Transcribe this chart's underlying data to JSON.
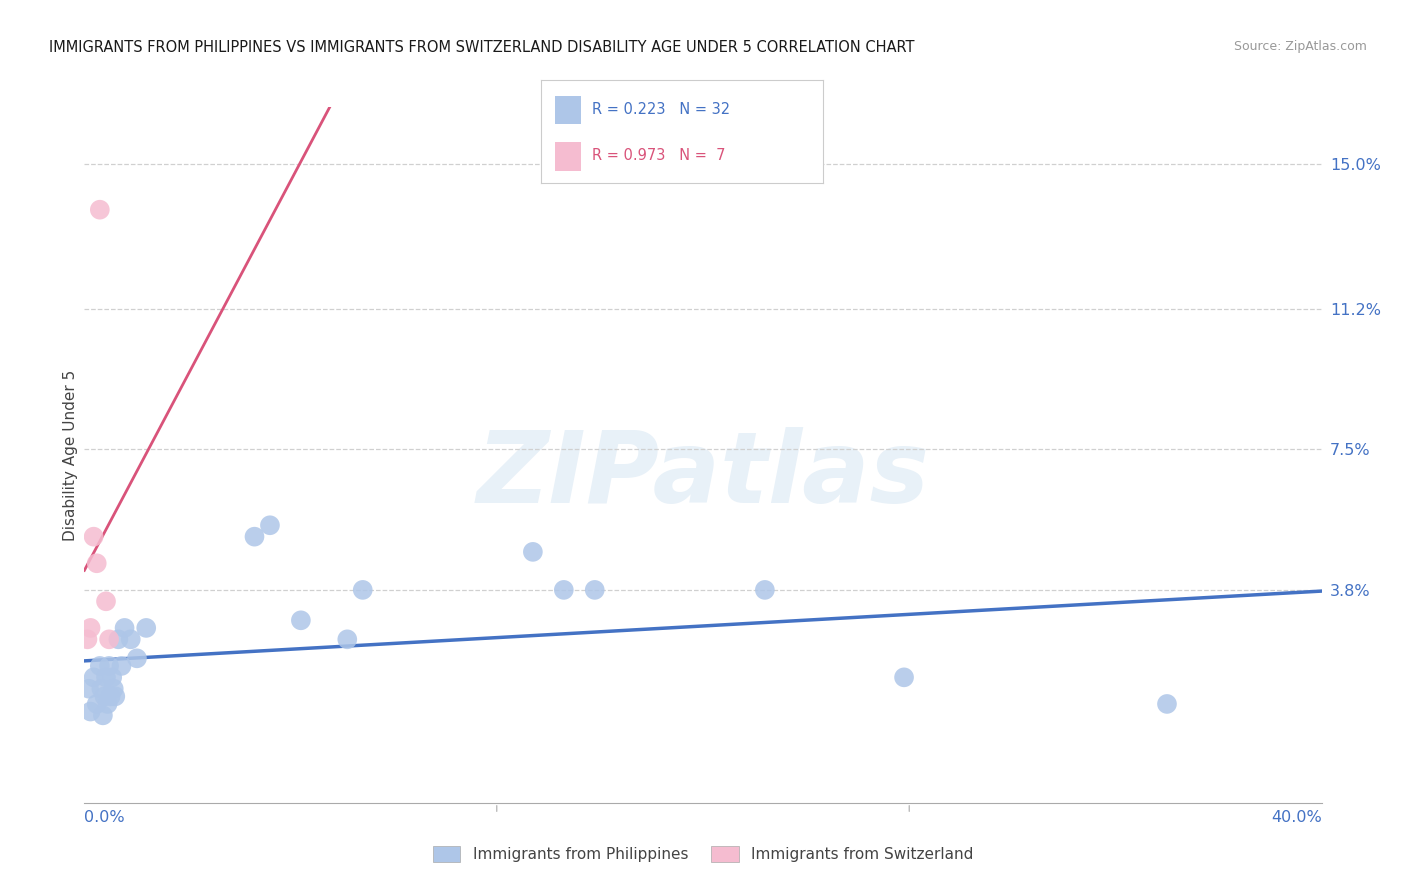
{
  "title": "IMMIGRANTS FROM PHILIPPINES VS IMMIGRANTS FROM SWITZERLAND DISABILITY AGE UNDER 5 CORRELATION CHART",
  "source": "Source: ZipAtlas.com",
  "ylabel": "Disability Age Under 5",
  "ytick_display_vals": [
    15.0,
    11.2,
    7.5,
    3.8
  ],
  "xmin": 0.0,
  "xmax": 40.0,
  "ymin": -1.8,
  "ymax": 16.5,
  "philippines_x": [
    0.15,
    0.2,
    0.3,
    0.4,
    0.5,
    0.55,
    0.6,
    0.65,
    0.7,
    0.75,
    0.8,
    0.85,
    0.9,
    0.95,
    1.0,
    1.1,
    1.2,
    1.3,
    1.5,
    1.7,
    2.0,
    5.5,
    6.0,
    7.0,
    8.5,
    9.0,
    14.5,
    15.5,
    16.5,
    22.0,
    26.5,
    35.0
  ],
  "philippines_y": [
    1.2,
    0.6,
    1.5,
    0.8,
    1.8,
    1.2,
    0.5,
    1.0,
    1.5,
    0.8,
    1.8,
    1.0,
    1.5,
    1.2,
    1.0,
    2.5,
    1.8,
    2.8,
    2.5,
    2.0,
    2.8,
    5.2,
    5.5,
    3.0,
    2.5,
    3.8,
    4.8,
    3.8,
    3.8,
    3.8,
    1.5,
    0.8
  ],
  "switzerland_x": [
    0.1,
    0.2,
    0.3,
    0.4,
    0.5,
    0.7,
    0.8
  ],
  "switzerland_y": [
    2.5,
    2.8,
    5.2,
    4.5,
    13.8,
    3.5,
    2.5
  ],
  "philippines_dot_color": "#aec6e8",
  "switzerland_dot_color": "#f5bcd0",
  "philippines_line_color": "#4472c4",
  "switzerland_line_color": "#d9537a",
  "philippines_R": 0.223,
  "philippines_N": 32,
  "switzerland_R": 0.973,
  "switzerland_N": 7,
  "dot_size": 200,
  "watermark_text": "ZIPatlas",
  "legend_label_philippines": "Immigrants from Philippines",
  "legend_label_switzerland": "Immigrants from Switzerland"
}
